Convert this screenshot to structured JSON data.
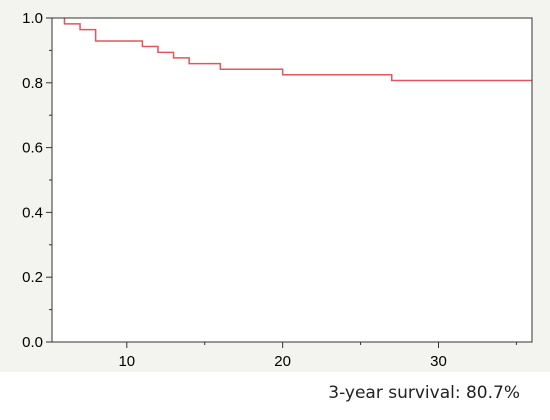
{
  "caption": "3-year survival: 80.7%",
  "chart_data": {
    "type": "line",
    "title": "",
    "xlabel": "",
    "ylabel": "",
    "xlim": [
      5.2,
      36
    ],
    "ylim": [
      0,
      1
    ],
    "x_ticks": [
      {
        "value": 10,
        "label": "10"
      },
      {
        "value": 20,
        "label": "20"
      },
      {
        "value": 30,
        "label": "30"
      }
    ],
    "y_ticks": [
      {
        "value": 0.0,
        "label": "0.0"
      },
      {
        "value": 0.2,
        "label": "0.2"
      },
      {
        "value": 0.4,
        "label": "0.4"
      },
      {
        "value": 0.6,
        "label": "0.6"
      },
      {
        "value": 0.8,
        "label": "0.8"
      },
      {
        "value": 1.0,
        "label": "1.0"
      }
    ],
    "x_minor_ticks": [
      15,
      25,
      35
    ],
    "y_minor_ticks": [
      0.1,
      0.3,
      0.5,
      0.7,
      0.9
    ],
    "grid": false,
    "plot_background": "#ffffff",
    "figure_background": "#f3f3ef",
    "series": [
      {
        "step": "post",
        "color": "#e0565f",
        "points": [
          {
            "x": 6,
            "y": 1.0
          },
          {
            "x": 6,
            "y": 0.982
          },
          {
            "x": 7,
            "y": 0.982
          },
          {
            "x": 7,
            "y": 0.964
          },
          {
            "x": 8,
            "y": 0.964
          },
          {
            "x": 8,
            "y": 0.929
          },
          {
            "x": 11,
            "y": 0.929
          },
          {
            "x": 11,
            "y": 0.912
          },
          {
            "x": 12,
            "y": 0.912
          },
          {
            "x": 12,
            "y": 0.894
          },
          {
            "x": 13,
            "y": 0.894
          },
          {
            "x": 13,
            "y": 0.877
          },
          {
            "x": 14,
            "y": 0.877
          },
          {
            "x": 14,
            "y": 0.859
          },
          {
            "x": 16,
            "y": 0.859
          },
          {
            "x": 16,
            "y": 0.842
          },
          {
            "x": 20,
            "y": 0.842
          },
          {
            "x": 20,
            "y": 0.825
          },
          {
            "x": 27,
            "y": 0.825
          },
          {
            "x": 27,
            "y": 0.807
          },
          {
            "x": 36,
            "y": 0.807
          }
        ]
      }
    ]
  }
}
